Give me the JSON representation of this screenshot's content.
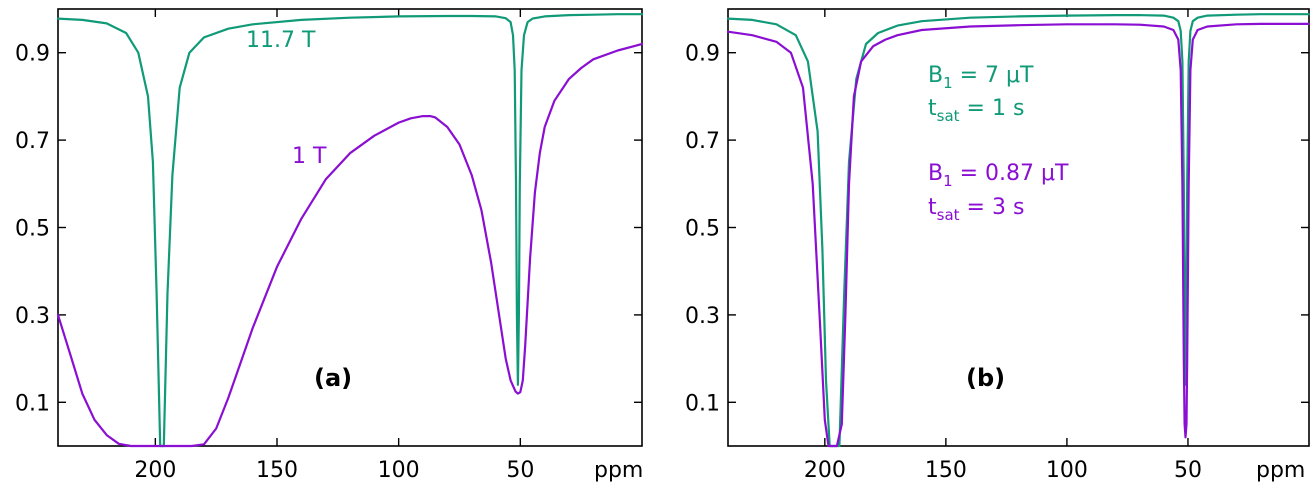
{
  "colors": {
    "green": "#109a78",
    "purple": "#8a0fd2"
  },
  "chart_data": [
    {
      "type": "line",
      "panel_label": "(a)",
      "x_unit": "ppm",
      "xlim": [
        240,
        0
      ],
      "ylim": [
        0.0,
        1.0
      ],
      "x_ticks": [
        "200",
        "150",
        "100",
        "50"
      ],
      "y_ticks": [
        "0.9",
        "0.7",
        "0.5",
        "0.3",
        "0.1"
      ],
      "grid": false,
      "series": [
        {
          "name": "11.7 T",
          "color": "green",
          "x": [
            240,
            230,
            220,
            212,
            207,
            203,
            201,
            199.5,
            198,
            196.5,
            195,
            193,
            190,
            186,
            180,
            170,
            160,
            140,
            120,
            100,
            80,
            70,
            60,
            56,
            54,
            53,
            52.3,
            51.8,
            51.4,
            51,
            50.6,
            50.2,
            49.5,
            48.5,
            47,
            45,
            40,
            30,
            20,
            10,
            0
          ],
          "y": [
            0.978,
            0.975,
            0.967,
            0.945,
            0.9,
            0.8,
            0.65,
            0.35,
            0.0,
            0.0,
            0.35,
            0.62,
            0.82,
            0.9,
            0.935,
            0.955,
            0.965,
            0.975,
            0.98,
            0.983,
            0.984,
            0.984,
            0.983,
            0.979,
            0.97,
            0.94,
            0.86,
            0.6,
            0.3,
            0.14,
            0.3,
            0.6,
            0.86,
            0.94,
            0.97,
            0.978,
            0.983,
            0.986,
            0.987,
            0.988,
            0.988
          ]
        },
        {
          "name": "1 T",
          "color": "purple",
          "x": [
            240,
            235,
            230,
            225,
            220,
            215,
            210,
            205,
            200,
            195,
            190,
            185,
            180,
            175,
            170,
            165,
            160,
            150,
            140,
            130,
            120,
            110,
            100,
            95,
            90,
            87,
            85,
            80,
            75,
            70,
            66,
            62,
            59,
            56,
            54,
            52,
            51,
            50,
            49,
            48,
            46,
            44,
            42,
            40,
            36,
            30,
            25,
            20,
            10,
            0
          ],
          "y": [
            0.3,
            0.21,
            0.12,
            0.06,
            0.025,
            0.005,
            0.0,
            0.0,
            0.0,
            0.0,
            0.0,
            0.0,
            0.004,
            0.04,
            0.11,
            0.19,
            0.27,
            0.41,
            0.52,
            0.61,
            0.67,
            0.71,
            0.74,
            0.75,
            0.755,
            0.755,
            0.752,
            0.73,
            0.69,
            0.62,
            0.54,
            0.42,
            0.31,
            0.2,
            0.15,
            0.125,
            0.12,
            0.123,
            0.15,
            0.23,
            0.43,
            0.58,
            0.67,
            0.73,
            0.79,
            0.84,
            0.865,
            0.885,
            0.905,
            0.92
          ]
        }
      ]
    },
    {
      "type": "line",
      "panel_label": "(b)",
      "x_unit": "ppm",
      "xlim": [
        240,
        0
      ],
      "ylim": [
        0.0,
        1.0
      ],
      "x_ticks": [
        "200",
        "150",
        "100",
        "50"
      ],
      "y_ticks": [
        "0.9",
        "0.7",
        "0.5",
        "0.3",
        "0.1"
      ],
      "grid": false,
      "annotations": [
        {
          "color": "green",
          "lines": [
            {
              "main": "B",
              "sub": "1",
              "rest": " = 7 μT"
            },
            {
              "main": "t",
              "sub": "sat",
              "rest": " = 1 s"
            }
          ]
        },
        {
          "color": "purple",
          "lines": [
            {
              "main": "B",
              "sub": "1",
              "rest": " = 0.87 μT"
            },
            {
              "main": "t",
              "sub": "sat",
              "rest": " = 3 s"
            }
          ]
        }
      ],
      "series": [
        {
          "color": "green",
          "x": [
            240,
            230,
            220,
            212,
            207,
            203,
            201,
            199.5,
            198,
            196,
            194,
            192,
            190,
            187,
            183,
            178,
            170,
            160,
            140,
            120,
            100,
            80,
            70,
            60,
            56,
            54,
            53,
            52.3,
            51.7,
            51.3,
            51,
            50.7,
            50.3,
            49.7,
            49,
            48,
            46,
            42,
            30,
            20,
            10,
            0
          ],
          "y": [
            0.978,
            0.975,
            0.965,
            0.94,
            0.88,
            0.72,
            0.45,
            0.15,
            0.0,
            0.0,
            0.0,
            0.35,
            0.65,
            0.84,
            0.92,
            0.945,
            0.962,
            0.972,
            0.98,
            0.983,
            0.985,
            0.986,
            0.986,
            0.985,
            0.98,
            0.972,
            0.95,
            0.88,
            0.6,
            0.3,
            0.14,
            0.3,
            0.6,
            0.88,
            0.95,
            0.972,
            0.98,
            0.985,
            0.987,
            0.988,
            0.988,
            0.988
          ]
        },
        {
          "color": "purple",
          "x": [
            240,
            230,
            220,
            214,
            209,
            205,
            202,
            200,
            198.5,
            197,
            195,
            193,
            191.5,
            190,
            188,
            185,
            180,
            175,
            170,
            160,
            140,
            120,
            100,
            80,
            70,
            60,
            56,
            54,
            53,
            52.3,
            51.7,
            51.4,
            51,
            50.6,
            50.3,
            49.7,
            49,
            48,
            46,
            42,
            30,
            20,
            10,
            0
          ],
          "y": [
            0.948,
            0.94,
            0.925,
            0.9,
            0.82,
            0.6,
            0.28,
            0.06,
            0.0,
            0.0,
            0.0,
            0.05,
            0.3,
            0.6,
            0.8,
            0.88,
            0.915,
            0.93,
            0.94,
            0.952,
            0.96,
            0.963,
            0.965,
            0.965,
            0.964,
            0.96,
            0.952,
            0.93,
            0.86,
            0.6,
            0.2,
            0.05,
            0.02,
            0.05,
            0.2,
            0.6,
            0.86,
            0.93,
            0.952,
            0.96,
            0.965,
            0.966,
            0.966,
            0.966
          ]
        }
      ]
    }
  ]
}
